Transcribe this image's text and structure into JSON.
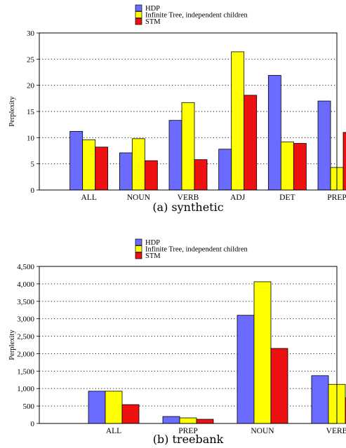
{
  "legend": {
    "hdp": "HDP",
    "infinite_tree": "Infinite Tree, independent children",
    "stm": "STM"
  },
  "colors": {
    "hdp": "#6b6bff",
    "infinite_tree": "#ffff00",
    "stm": "#ee1111"
  },
  "chart_data": [
    {
      "type": "bar",
      "caption": "(a)  synthetic",
      "ylabel": "Perplexity",
      "xlabel": "",
      "ylim": [
        0,
        30
      ],
      "yticks": [
        0,
        5,
        10,
        15,
        20,
        25,
        30
      ],
      "ytick_labels": [
        "0",
        "5",
        "10",
        "15",
        "20",
        "25",
        "30"
      ],
      "grid": "horizontal dotted",
      "legend_position": "top",
      "categories": [
        "ALL",
        "NOUN",
        "VERB",
        "ADJ",
        "DET",
        "PREP"
      ],
      "series": [
        {
          "name": "HDP",
          "color_key": "hdp",
          "values": [
            11.2,
            7.1,
            13.3,
            7.8,
            21.9,
            17.0
          ]
        },
        {
          "name": "Infinite Tree, independent children",
          "color_key": "infinite_tree",
          "values": [
            9.6,
            9.8,
            16.7,
            26.4,
            9.2,
            4.3
          ]
        },
        {
          "name": "STM",
          "color_key": "stm",
          "values": [
            8.2,
            5.6,
            5.8,
            18.1,
            8.9,
            11.0
          ]
        }
      ]
    },
    {
      "type": "bar",
      "caption": "(b)  treebank",
      "ylabel": "Perplexity",
      "xlabel": "",
      "ylim": [
        0,
        4500
      ],
      "yticks": [
        0,
        500,
        1000,
        1500,
        2000,
        2500,
        3000,
        3500,
        4000,
        4500
      ],
      "ytick_labels": [
        "0",
        "500",
        "1,000",
        "1,500",
        "2,000",
        "2,500",
        "3,000",
        "3,500",
        "4,000",
        "4,500"
      ],
      "grid": "horizontal dotted",
      "legend_position": "top",
      "categories": [
        "ALL",
        "PREP",
        "NOUN",
        "VERB"
      ],
      "series": [
        {
          "name": "HDP",
          "color_key": "hdp",
          "values": [
            925,
            200,
            3100,
            1370
          ]
        },
        {
          "name": "Infinite Tree, independent children",
          "color_key": "infinite_tree",
          "values": [
            925,
            160,
            4060,
            1120
          ]
        },
        {
          "name": "STM",
          "color_key": "stm",
          "values": [
            540,
            120,
            2150,
            740
          ]
        }
      ]
    }
  ]
}
